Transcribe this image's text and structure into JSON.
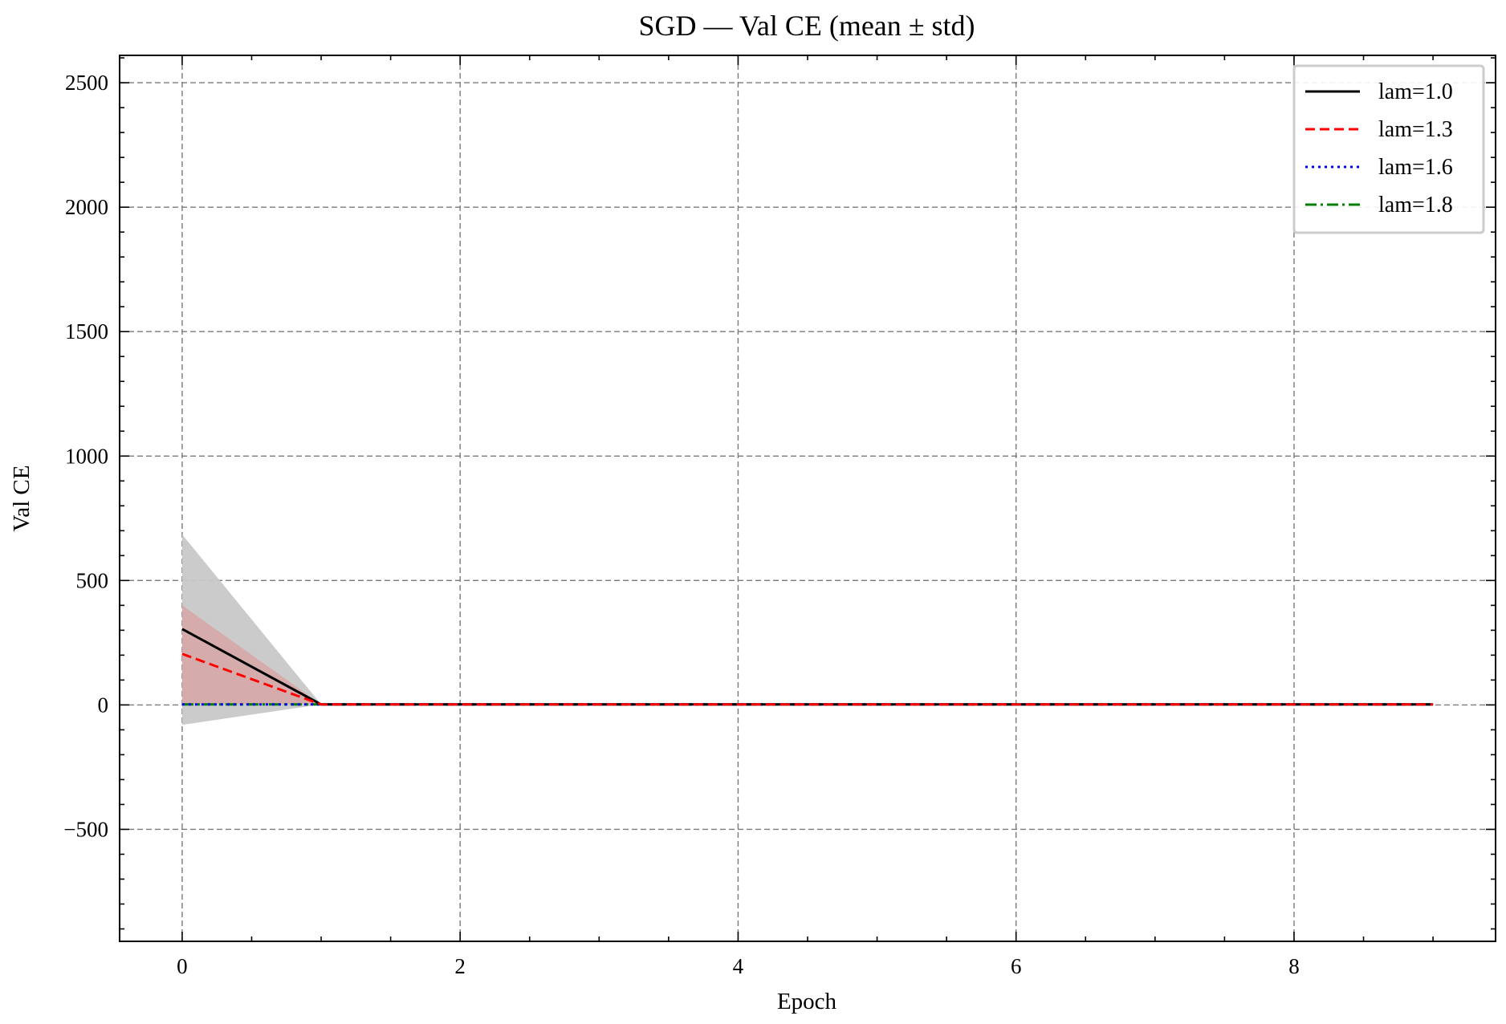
{
  "chart_data": {
    "type": "line",
    "title": "SGD — Val CE (mean ± std)",
    "xlabel": "Epoch",
    "ylabel": "Val CE",
    "xlim": [
      -0.45,
      9.45
    ],
    "ylim": [
      -950,
      2610
    ],
    "xticks": [
      0,
      2,
      4,
      6,
      8
    ],
    "xtick_labels": [
      "0",
      "2",
      "4",
      "6",
      "8"
    ],
    "yticks": [
      -500,
      0,
      500,
      1000,
      1500,
      2000,
      2500
    ],
    "ytick_labels": [
      "−500",
      "0",
      "500",
      "1000",
      "1500",
      "2000",
      "2500"
    ],
    "grid": true,
    "legend_position": "top-right",
    "x": [
      0,
      1,
      2,
      3,
      4,
      5,
      6,
      7,
      8,
      9
    ],
    "series": [
      {
        "name": "lam=1.0",
        "color": "#000000",
        "linestyle": "solid",
        "values": [
          305,
          2,
          2,
          2,
          2,
          2,
          2,
          2,
          2,
          2
        ],
        "band_lower": [
          -80,
          2,
          2,
          2,
          2,
          2,
          2,
          2,
          2,
          2
        ],
        "band_upper": [
          685,
          2,
          2,
          2,
          2,
          2,
          2,
          2,
          2,
          2
        ],
        "band_color": "#c8c8c8"
      },
      {
        "name": "lam=1.3",
        "color": "#ff0000",
        "linestyle": "dashed",
        "values": [
          205,
          2,
          2,
          2,
          2,
          2,
          2,
          2,
          2,
          2
        ],
        "band_lower": [
          5,
          2,
          2,
          2,
          2,
          2,
          2,
          2,
          2,
          2
        ],
        "band_upper": [
          400,
          2,
          2,
          2,
          2,
          2,
          2,
          2,
          2,
          2
        ],
        "band_color": "#d9a0a0"
      },
      {
        "name": "lam=1.6",
        "color": "#0000ff",
        "linestyle": "dotted",
        "values": [
          2,
          2,
          2,
          2,
          2,
          2,
          2,
          2,
          2,
          2
        ]
      },
      {
        "name": "lam=1.8",
        "color": "#008000",
        "linestyle": "dashdot",
        "values": [
          2,
          2,
          2,
          2,
          2,
          2,
          2,
          2,
          2,
          2
        ]
      }
    ]
  }
}
